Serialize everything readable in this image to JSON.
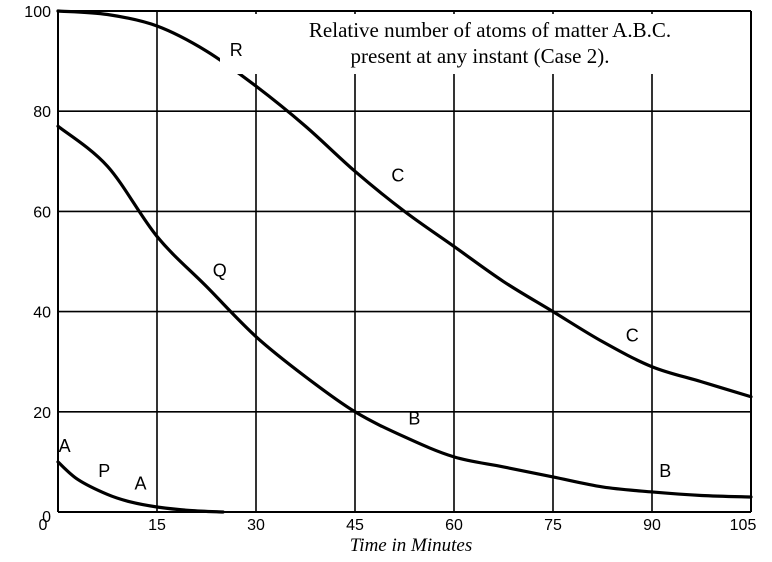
{
  "chart_data": {
    "type": "line",
    "title": "Relative number of atoms of matter A.B.C. present at any instant (Case 2).",
    "title_lines": [
      "Relative number of atoms of matter A.B.C.",
      "present at any instant (Case 2)."
    ],
    "xlabel": "Time in Minutes",
    "ylabel": "",
    "xlim": [
      0,
      105
    ],
    "ylim": [
      0,
      100
    ],
    "x_ticks": [
      0,
      15,
      30,
      45,
      60,
      75,
      90,
      105
    ],
    "y_ticks": [
      0,
      20,
      40,
      60,
      80,
      100
    ],
    "grid": true,
    "legend": "none (curves labeled inline)",
    "series": [
      {
        "name": "Matter C (curve R)",
        "labels": [
          "R",
          "C",
          "C"
        ],
        "x": [
          0,
          7.5,
          15,
          22.5,
          30,
          37.5,
          45,
          52.5,
          60,
          67.5,
          75,
          82.5,
          90,
          97.5,
          105
        ],
        "values": [
          100,
          99.3,
          97,
          92,
          85,
          77,
          68,
          60,
          53,
          46,
          40,
          34,
          29,
          26,
          23
        ]
      },
      {
        "name": "Matter B (curve Q)",
        "labels": [
          "Q",
          "B",
          "B"
        ],
        "x": [
          0,
          7.5,
          15,
          22.5,
          30,
          37.5,
          45,
          52.5,
          60,
          67.5,
          75,
          82.5,
          90,
          97.5,
          105
        ],
        "values": [
          77,
          69,
          55,
          45,
          35,
          27,
          20,
          15,
          11,
          9,
          7,
          5,
          4,
          3.3,
          3
        ]
      },
      {
        "name": "Matter A (curve P)",
        "labels": [
          "A",
          "P",
          "A"
        ],
        "x": [
          0,
          3,
          7.5,
          11,
          15,
          20,
          25
        ],
        "values": [
          10,
          6.5,
          3.5,
          2,
          1,
          0.3,
          0
        ]
      }
    ],
    "annotations": [
      {
        "text": "R",
        "x": 27,
        "y": 91
      },
      {
        "text": "C",
        "x": 51.5,
        "y": 66
      },
      {
        "text": "C",
        "x": 87,
        "y": 34
      },
      {
        "text": "Q",
        "x": 24.5,
        "y": 47
      },
      {
        "text": "B",
        "x": 54,
        "y": 17.5
      },
      {
        "text": "B",
        "x": 92,
        "y": 7
      },
      {
        "text": "A",
        "x": 1,
        "y": 12
      },
      {
        "text": "P",
        "x": 7,
        "y": 7
      },
      {
        "text": "A",
        "x": 12.5,
        "y": 4.5
      }
    ]
  },
  "labels": {
    "title_line1": "Relative number of atoms of matter A.B.C.",
    "title_line2": "present at any instant (Case 2).",
    "xlabel": "Time in Minutes",
    "x_ticks": [
      "0",
      "15",
      "30",
      "45",
      "60",
      "75",
      "90",
      "105"
    ],
    "y_ticks": [
      "0",
      "20",
      "40",
      "60",
      "80",
      "100"
    ],
    "curve_labels": [
      "R",
      "C",
      "C",
      "Q",
      "B",
      "B",
      "A",
      "P",
      "A"
    ]
  },
  "colors": {
    "ink": "#000000",
    "paper": "#ffffff"
  }
}
